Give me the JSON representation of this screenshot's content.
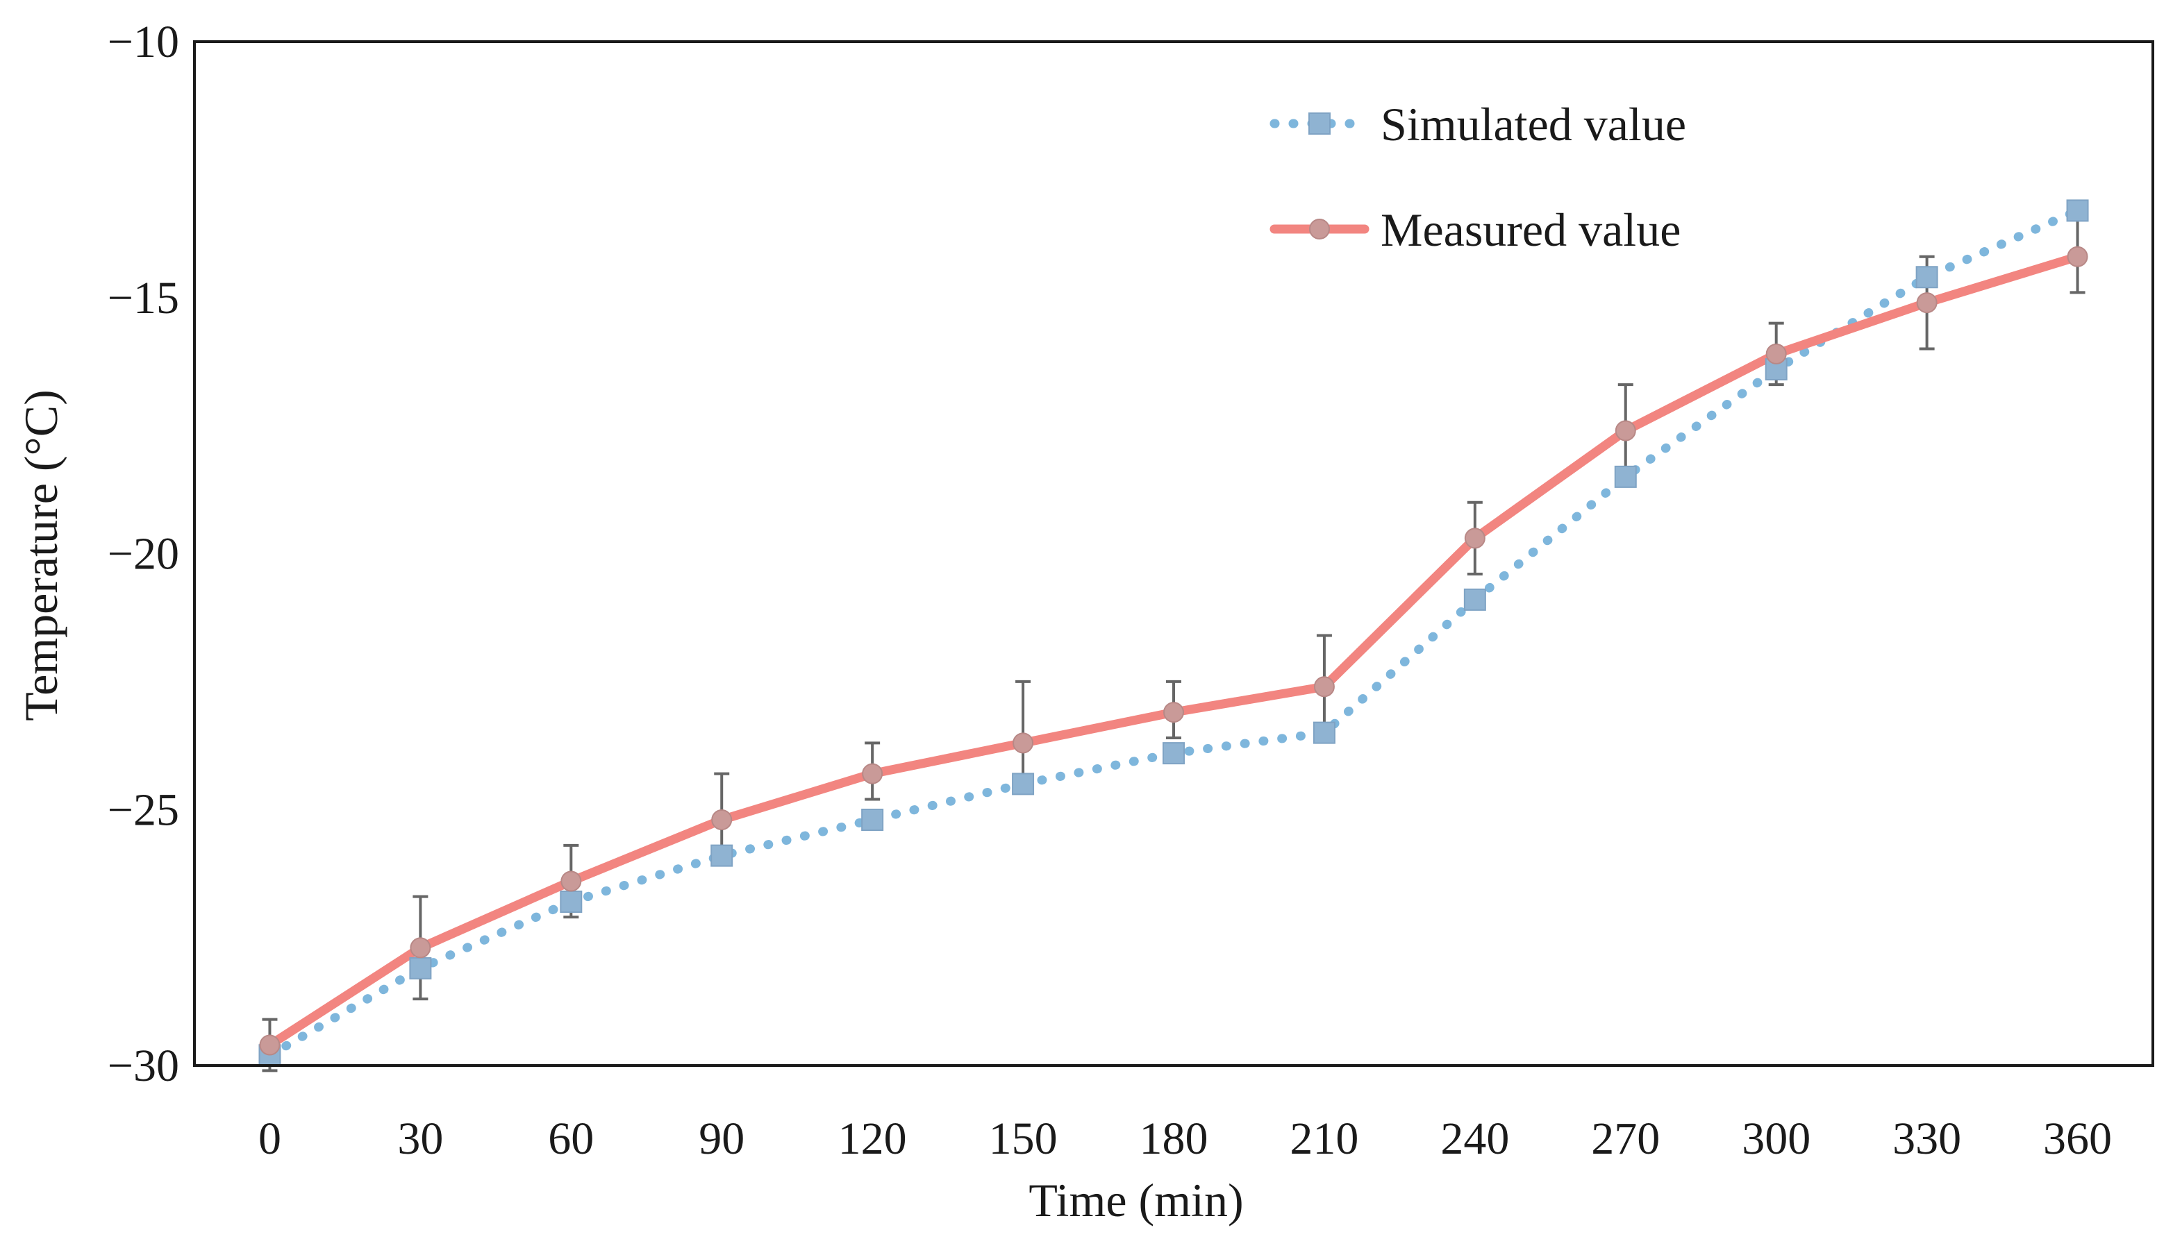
{
  "chart_data": {
    "type": "line",
    "title": "",
    "xlabel": "Time (min)",
    "ylabel": "Temperature (°C)",
    "categories": [
      "0",
      "30",
      "60",
      "90",
      "120",
      "150",
      "180",
      "210",
      "240",
      "270",
      "300",
      "330",
      "360"
    ],
    "x": [
      0,
      30,
      60,
      90,
      120,
      150,
      180,
      210,
      240,
      270,
      300,
      330,
      360
    ],
    "xlim": [
      -15,
      375
    ],
    "ylim": [
      -30,
      -10
    ],
    "yticks": [
      -30,
      -25,
      -20,
      -15,
      -10
    ],
    "ytick_labels": [
      "−30",
      "−25",
      "−20",
      "−15",
      "−10"
    ],
    "grid": false,
    "legend_position": "top-right",
    "series": [
      {
        "name": "Simulated value",
        "style": "dotted",
        "marker": "square",
        "color": "#7EB6DC",
        "marker_color": "#8FB3D2",
        "values": [
          -29.8,
          -28.1,
          -26.8,
          -25.9,
          -25.2,
          -24.5,
          -23.9,
          -23.5,
          -20.9,
          -18.5,
          -16.4,
          -14.6,
          -13.3
        ]
      },
      {
        "name": "Measured value",
        "style": "solid",
        "marker": "circle",
        "color": "#F28580",
        "marker_color": "#C99A98",
        "values": [
          -29.6,
          -27.7,
          -26.4,
          -25.2,
          -24.3,
          -23.7,
          -23.1,
          -22.6,
          -19.7,
          -17.6,
          -16.1,
          -15.1,
          -14.2
        ],
        "error_upper": [
          0.5,
          1.0,
          0.7,
          0.9,
          0.6,
          1.2,
          0.6,
          1.0,
          0.7,
          0.9,
          0.6,
          0.9,
          0.8
        ],
        "error_lower": [
          0.5,
          1.0,
          0.7,
          0.6,
          0.5,
          0.9,
          0.5,
          0.9,
          0.7,
          0.9,
          0.6,
          0.9,
          0.7
        ]
      }
    ]
  },
  "colors": {
    "axis": "#1a1a1a",
    "errorbar": "#666666"
  }
}
